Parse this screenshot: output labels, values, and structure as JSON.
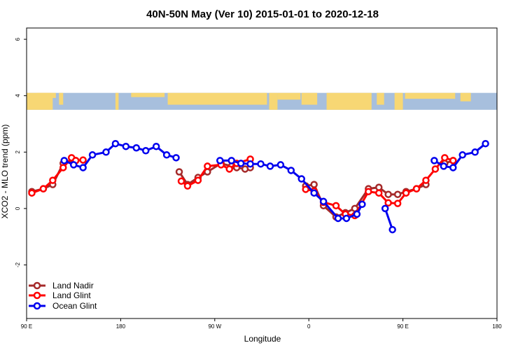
{
  "chart_data": {
    "type": "line",
    "title": "40N-50N May (Ver 10)   2015-01-01 to 2020-12-18",
    "xlabel": "Longitude",
    "ylabel": "XCO2 - MLO trend (ppm)",
    "x_ticks": [
      {
        "value": 90,
        "label": "90 E"
      },
      {
        "value": 180,
        "label": "180"
      },
      {
        "value": 270,
        "label": "90 W"
      },
      {
        "value": 360,
        "label": "0"
      },
      {
        "value": 450,
        "label": "90 E"
      },
      {
        "value": 540,
        "label": "180"
      }
    ],
    "y_ticks": [
      {
        "value": -2,
        "label": "-2"
      },
      {
        "value": 0,
        "label": "0"
      },
      {
        "value": 2,
        "label": "2"
      },
      {
        "value": 4,
        "label": "4"
      },
      {
        "value": 6,
        "label": "6"
      }
    ],
    "xlim": [
      90,
      540
    ],
    "ylim": [
      -3.9,
      6.4
    ],
    "legend_position": "bottom-left",
    "map_strip": {
      "ymin": 3.5,
      "ymax": 4.1,
      "land_color": "#f7d774",
      "ocean_color": "#a7bfdd"
    },
    "series": [
      {
        "name": "Land Nadir",
        "color": "#a52a2a",
        "segments": [
          [
            [
              95,
              0.6
            ],
            [
              106,
              0.7
            ],
            [
              115,
              0.85
            ],
            [
              125,
              1.6
            ],
            [
              137,
              1.7
            ]
          ],
          [
            [
              236,
              1.3
            ],
            [
              244,
              0.85
            ],
            [
              254,
              1.1
            ],
            [
              263,
              1.3
            ],
            [
              276,
              1.6
            ],
            [
              286,
              1.5
            ],
            [
              291,
              1.45
            ],
            [
              299,
              1.4
            ],
            [
              304,
              1.45
            ]
          ],
          [
            [
              357,
              0.8
            ],
            [
              365,
              0.85
            ],
            [
              374,
              0.1
            ],
            [
              386,
              -0.3
            ],
            [
              395,
              -0.15
            ],
            [
              404,
              0.0
            ],
            [
              417,
              0.7
            ],
            [
              427,
              0.75
            ],
            [
              436,
              0.5
            ],
            [
              445,
              0.5
            ],
            [
              453,
              0.6
            ],
            [
              463,
              0.7
            ],
            [
              472,
              0.85
            ]
          ],
          [
            [
              490,
              1.6
            ],
            [
              498,
              1.7
            ]
          ]
        ]
      },
      {
        "name": "Land Glint",
        "color": "#ff0000",
        "segments": [
          [
            [
              95,
              0.55
            ],
            [
              106,
              0.7
            ],
            [
              115,
              1.0
            ],
            [
              125,
              1.45
            ],
            [
              133,
              1.8
            ],
            [
              137,
              1.7
            ],
            [
              144,
              1.72
            ]
          ],
          [
            [
              238,
              0.97
            ],
            [
              244,
              0.8
            ],
            [
              254,
              1.0
            ],
            [
              263,
              1.5
            ],
            [
              276,
              1.55
            ],
            [
              284,
              1.4
            ],
            [
              291,
              1.6
            ],
            [
              304,
              1.75
            ]
          ],
          [
            [
              357,
              0.68
            ],
            [
              365,
              0.62
            ],
            [
              374,
              0.22
            ],
            [
              386,
              0.1
            ],
            [
              395,
              -0.2
            ],
            [
              404,
              -0.25
            ],
            [
              417,
              0.6
            ],
            [
              427,
              0.55
            ],
            [
              436,
              0.2
            ],
            [
              445,
              0.18
            ],
            [
              453,
              0.55
            ],
            [
              463,
              0.7
            ],
            [
              472,
              1.0
            ],
            [
              481,
              1.4
            ],
            [
              490,
              1.8
            ],
            [
              498,
              1.7
            ]
          ]
        ]
      },
      {
        "name": "Ocean Glint",
        "color": "#0000ee",
        "segments": [
          [
            [
              126,
              1.7
            ],
            [
              135,
              1.55
            ],
            [
              144,
              1.45
            ],
            [
              153,
              1.9
            ],
            [
              166,
              2.0
            ],
            [
              175,
              2.3
            ],
            [
              185,
              2.2
            ],
            [
              195,
              2.15
            ],
            [
              204,
              2.05
            ],
            [
              214,
              2.2
            ],
            [
              224,
              1.9
            ],
            [
              233,
              1.8
            ]
          ],
          [
            [
              275,
              1.7
            ],
            [
              286,
              1.7
            ],
            [
              295,
              1.6
            ],
            [
              304,
              1.58
            ],
            [
              314,
              1.58
            ],
            [
              323,
              1.5
            ],
            [
              333,
              1.55
            ],
            [
              343,
              1.35
            ],
            [
              353,
              1.05
            ],
            [
              365,
              0.55
            ],
            [
              374,
              0.25
            ],
            [
              388,
              -0.35
            ],
            [
              396,
              -0.35
            ],
            [
              406,
              -0.2
            ],
            [
              411,
              0.15
            ]
          ],
          [
            [
              433,
              0.0
            ],
            [
              440,
              -0.75
            ]
          ],
          [
            [
              480,
              1.7
            ],
            [
              489,
              1.5
            ],
            [
              498,
              1.45
            ],
            [
              507,
              1.9
            ],
            [
              519,
              2.0
            ],
            [
              529,
              2.3
            ]
          ]
        ]
      }
    ]
  }
}
